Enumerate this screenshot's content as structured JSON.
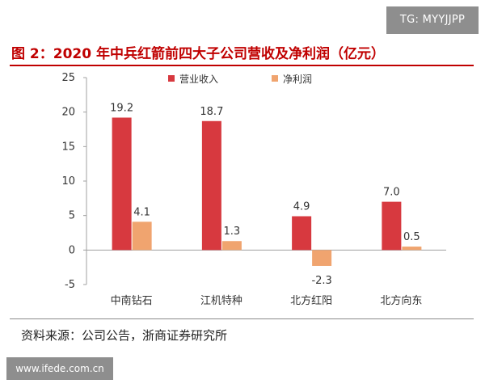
{
  "watermarks": {
    "top": "TG: MYYJJPP",
    "bottom": "www.ifede.com.cn"
  },
  "colors": {
    "title": "#c00000",
    "revenue": "#d7393f",
    "profit": "#f0a46f",
    "axis": "#a0a0a0",
    "text": "#333333"
  },
  "source": "资料来源：公司公告，浙商证券研究所",
  "chart_data": {
    "type": "bar",
    "title": "图 2：2020 年中兵红箭前四大子公司营收及净利润（亿元）",
    "categories": [
      "中南钻石",
      "江机特种",
      "北方红阳",
      "北方向东"
    ],
    "series": [
      {
        "name": "营业收入",
        "values": [
          19.2,
          18.7,
          4.9,
          7.0
        ]
      },
      {
        "name": "净利润",
        "values": [
          4.1,
          1.3,
          -2.3,
          0.5
        ]
      }
    ],
    "yticks": [
      "25",
      "20",
      "15",
      "10",
      "5",
      "0",
      "-5"
    ],
    "ylim": [
      -5,
      25
    ],
    "legend": "top-center",
    "xlabel": "",
    "ylabel": ""
  }
}
